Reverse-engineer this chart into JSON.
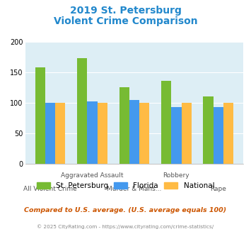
{
  "title_line1": "2019 St. Petersburg",
  "title_line2": "Violent Crime Comparison",
  "st_pete": [
    158,
    174,
    126,
    136,
    111
  ],
  "florida": [
    100,
    103,
    105,
    93,
    93
  ],
  "national": [
    100,
    100,
    100,
    100,
    100
  ],
  "st_pete_color": "#77bb33",
  "florida_color": "#4499ee",
  "national_color": "#ffbb44",
  "title_color": "#2288cc",
  "bg_color": "#ddeef5",
  "ylim": [
    0,
    200
  ],
  "yticks": [
    0,
    50,
    100,
    150,
    200
  ],
  "top_labels": [
    "",
    "Aggravated Assault",
    "",
    "Robbery",
    ""
  ],
  "bot_labels": [
    "All Violent Crime",
    "",
    "Murder & Mans...",
    "",
    "Rape"
  ],
  "footnote1": "Compared to U.S. average. (U.S. average equals 100)",
  "footnote2": "© 2025 CityRating.com - https://www.cityrating.com/crime-statistics/",
  "footnote2_link": "https://www.cityrating.com/crime-statistics/",
  "legend_labels": [
    "St. Petersburg",
    "Florida",
    "National"
  ],
  "bar_width": 0.24
}
